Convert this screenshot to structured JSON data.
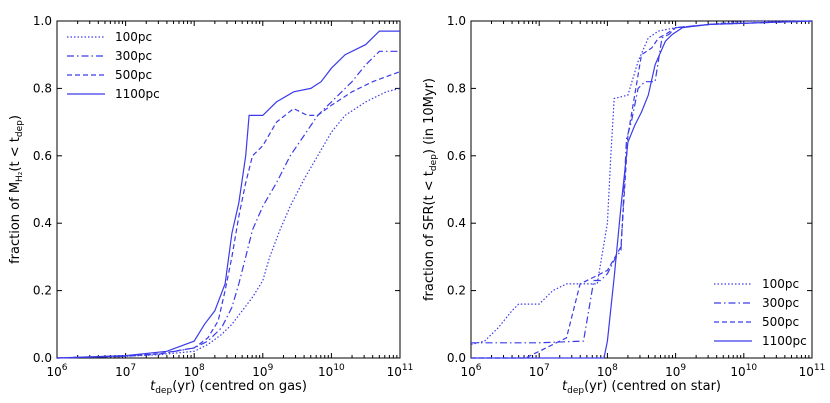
{
  "chart_data": [
    {
      "type": "line",
      "panel": "left",
      "xscale": "log",
      "xlim_exp": [
        6,
        11
      ],
      "ylim": [
        0.0,
        1.0
      ],
      "xlabel_prefix": "t",
      "xlabel_sub": "dep",
      "xlabel_suffix": "(yr) (centred on gas)",
      "ylabel_prefix": "fraction of M",
      "ylabel_sub": "H₂",
      "ylabel_mid": "(t < t",
      "ylabel_sub2": "dep",
      "ylabel_suffix": ")",
      "xticks": [
        6,
        7,
        8,
        9,
        10,
        11
      ],
      "yticks": [
        "0.0",
        "0.2",
        "0.4",
        "0.6",
        "0.8",
        "1.0"
      ],
      "legend_position": "top-left",
      "color": "#3b3bea",
      "series": [
        {
          "name": "100pc",
          "dash": "dotted",
          "points": [
            [
              6,
              0.0
            ],
            [
              7,
              0.005
            ],
            [
              7.5,
              0.01
            ],
            [
              8,
              0.02
            ],
            [
              8.2,
              0.04
            ],
            [
              8.4,
              0.07
            ],
            [
              8.55,
              0.1
            ],
            [
              8.7,
              0.14
            ],
            [
              8.85,
              0.18
            ],
            [
              9.0,
              0.23
            ],
            [
              9.1,
              0.3
            ],
            [
              9.25,
              0.38
            ],
            [
              9.4,
              0.45
            ],
            [
              9.6,
              0.53
            ],
            [
              9.8,
              0.6
            ],
            [
              10.0,
              0.67
            ],
            [
              10.2,
              0.72
            ],
            [
              10.5,
              0.76
            ],
            [
              10.8,
              0.79
            ],
            [
              11,
              0.8
            ]
          ]
        },
        {
          "name": "300pc",
          "dash": "dashdot",
          "points": [
            [
              6,
              0.0
            ],
            [
              7,
              0.005
            ],
            [
              7.5,
              0.012
            ],
            [
              8,
              0.03
            ],
            [
              8.2,
              0.05
            ],
            [
              8.4,
              0.09
            ],
            [
              8.55,
              0.15
            ],
            [
              8.65,
              0.22
            ],
            [
              8.75,
              0.3
            ],
            [
              8.85,
              0.38
            ],
            [
              9.0,
              0.45
            ],
            [
              9.2,
              0.52
            ],
            [
              9.4,
              0.6
            ],
            [
              9.6,
              0.66
            ],
            [
              9.8,
              0.72
            ],
            [
              10.0,
              0.76
            ],
            [
              10.3,
              0.82
            ],
            [
              10.5,
              0.87
            ],
            [
              10.7,
              0.91
            ],
            [
              11,
              0.91
            ]
          ]
        },
        {
          "name": "500pc",
          "dash": "dashed",
          "points": [
            [
              6,
              0.0
            ],
            [
              7,
              0.006
            ],
            [
              7.5,
              0.013
            ],
            [
              8,
              0.03
            ],
            [
              8.2,
              0.06
            ],
            [
              8.35,
              0.11
            ],
            [
              8.45,
              0.2
            ],
            [
              8.55,
              0.3
            ],
            [
              8.65,
              0.42
            ],
            [
              8.75,
              0.52
            ],
            [
              8.85,
              0.6
            ],
            [
              9.0,
              0.63
            ],
            [
              9.2,
              0.7
            ],
            [
              9.45,
              0.74
            ],
            [
              9.65,
              0.72
            ],
            [
              9.8,
              0.72
            ],
            [
              10.0,
              0.75
            ],
            [
              10.3,
              0.79
            ],
            [
              10.6,
              0.82
            ],
            [
              11,
              0.85
            ]
          ]
        },
        {
          "name": "1100pc",
          "dash": "solid",
          "points": [
            [
              6,
              0.0
            ],
            [
              7,
              0.007
            ],
            [
              7.6,
              0.02
            ],
            [
              8,
              0.05
            ],
            [
              8.15,
              0.1
            ],
            [
              8.3,
              0.14
            ],
            [
              8.45,
              0.22
            ],
            [
              8.55,
              0.37
            ],
            [
              8.65,
              0.46
            ],
            [
              8.75,
              0.6
            ],
            [
              8.8,
              0.72
            ],
            [
              9.0,
              0.72
            ],
            [
              9.2,
              0.76
            ],
            [
              9.45,
              0.79
            ],
            [
              9.7,
              0.8
            ],
            [
              9.85,
              0.82
            ],
            [
              10.0,
              0.86
            ],
            [
              10.2,
              0.9
            ],
            [
              10.5,
              0.93
            ],
            [
              10.7,
              0.97
            ],
            [
              11,
              0.97
            ]
          ]
        }
      ]
    },
    {
      "type": "line",
      "panel": "right",
      "xscale": "log",
      "xlim_exp": [
        6,
        11
      ],
      "ylim": [
        0.0,
        1.0
      ],
      "xlabel_prefix": "t",
      "xlabel_sub": "dep",
      "xlabel_suffix": "(yr) (centred on star)",
      "ylabel_prefix": "fraction of SFR(t < t",
      "ylabel_sub": "dep",
      "ylabel_suffix": ") (in 10Myr)",
      "xticks": [
        6,
        7,
        8,
        9,
        10,
        11
      ],
      "yticks": [
        "0.0",
        "0.2",
        "0.4",
        "0.6",
        "0.8",
        "1.0"
      ],
      "legend_position": "bottom-right",
      "color": "#3b3bea",
      "series": [
        {
          "name": "100pc",
          "dash": "dotted",
          "points": [
            [
              6,
              0.04
            ],
            [
              6.2,
              0.05
            ],
            [
              6.4,
              0.09
            ],
            [
              6.6,
              0.14
            ],
            [
              6.7,
              0.16
            ],
            [
              7.0,
              0.16
            ],
            [
              7.2,
              0.2
            ],
            [
              7.4,
              0.22
            ],
            [
              7.7,
              0.22
            ],
            [
              7.85,
              0.22
            ],
            [
              8.0,
              0.4
            ],
            [
              8.05,
              0.6
            ],
            [
              8.1,
              0.77
            ],
            [
              8.3,
              0.78
            ],
            [
              8.45,
              0.88
            ],
            [
              8.6,
              0.95
            ],
            [
              8.75,
              0.97
            ],
            [
              9.0,
              0.98
            ],
            [
              9.5,
              0.99
            ],
            [
              10,
              1.0
            ],
            [
              11,
              1.0
            ]
          ]
        },
        {
          "name": "300pc",
          "dash": "dashdot",
          "points": [
            [
              6,
              0.045
            ],
            [
              7,
              0.045
            ],
            [
              7.65,
              0.05
            ],
            [
              7.8,
              0.23
            ],
            [
              7.9,
              0.23
            ],
            [
              8.0,
              0.25
            ],
            [
              8.1,
              0.29
            ],
            [
              8.2,
              0.32
            ],
            [
              8.28,
              0.65
            ],
            [
              8.35,
              0.7
            ],
            [
              8.45,
              0.8
            ],
            [
              8.55,
              0.82
            ],
            [
              8.7,
              0.82
            ],
            [
              8.8,
              0.95
            ],
            [
              8.9,
              0.96
            ],
            [
              9.0,
              0.98
            ],
            [
              9.5,
              0.99
            ],
            [
              11,
              1.0
            ]
          ]
        },
        {
          "name": "500pc",
          "dash": "dashed",
          "points": [
            [
              6,
              0.0
            ],
            [
              6.8,
              0.0
            ],
            [
              7.0,
              0.02
            ],
            [
              7.4,
              0.06
            ],
            [
              7.6,
              0.22
            ],
            [
              7.8,
              0.24
            ],
            [
              8.0,
              0.26
            ],
            [
              8.2,
              0.33
            ],
            [
              8.3,
              0.66
            ],
            [
              8.4,
              0.78
            ],
            [
              8.5,
              0.9
            ],
            [
              8.65,
              0.92
            ],
            [
              8.75,
              0.95
            ],
            [
              8.85,
              0.96
            ],
            [
              9.0,
              0.98
            ],
            [
              9.5,
              0.99
            ],
            [
              11,
              1.0
            ]
          ]
        },
        {
          "name": "1100pc",
          "dash": "solid",
          "points": [
            [
              6,
              0.0
            ],
            [
              7.95,
              0.0
            ],
            [
              8.0,
              0.05
            ],
            [
              8.1,
              0.24
            ],
            [
              8.2,
              0.45
            ],
            [
              8.3,
              0.64
            ],
            [
              8.4,
              0.69
            ],
            [
              8.5,
              0.73
            ],
            [
              8.6,
              0.78
            ],
            [
              8.7,
              0.87
            ],
            [
              8.85,
              0.94
            ],
            [
              8.95,
              0.96
            ],
            [
              9.1,
              0.98
            ],
            [
              9.5,
              0.99
            ],
            [
              11,
              1.0
            ]
          ]
        }
      ]
    }
  ]
}
